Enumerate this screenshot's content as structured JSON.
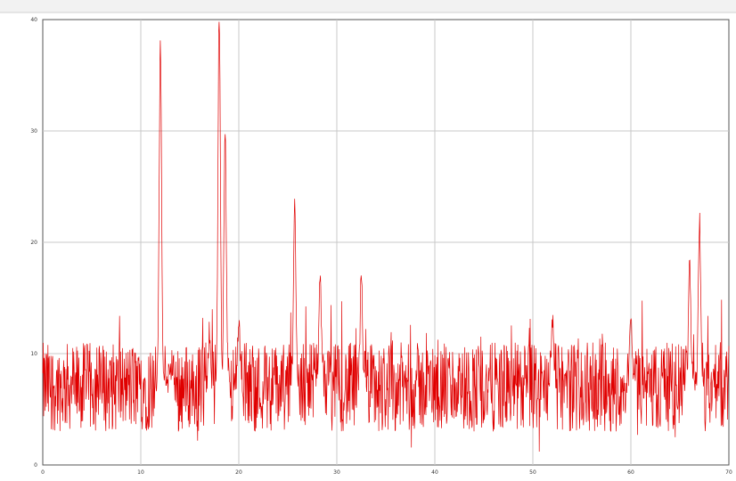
{
  "chart_data": {
    "type": "line",
    "title": "",
    "xlabel": "",
    "ylabel": "",
    "ylim": [
      0,
      40
    ],
    "xlim": [
      0,
      70
    ],
    "x_ticks": [
      0,
      10,
      20,
      30,
      40,
      50,
      60,
      70
    ],
    "y_ticks": [
      0,
      10,
      20,
      30,
      40
    ],
    "grid": true,
    "legend_position": "top-right",
    "line_color": "#e00000",
    "noise_mean": 7,
    "noise_amplitude": 4,
    "peaks": [
      {
        "x": 12,
        "y": 38
      },
      {
        "x": 13,
        "y": 9
      },
      {
        "x": 17,
        "y": 12
      },
      {
        "x": 18,
        "y": 41
      },
      {
        "x": 18.6,
        "y": 30
      },
      {
        "x": 20,
        "y": 13
      },
      {
        "x": 25.7,
        "y": 23
      },
      {
        "x": 28.3,
        "y": 17
      },
      {
        "x": 32.5,
        "y": 17
      },
      {
        "x": 52,
        "y": 13
      },
      {
        "x": 60,
        "y": 14
      },
      {
        "x": 66,
        "y": 18
      },
      {
        "x": 67,
        "y": 22
      }
    ]
  }
}
